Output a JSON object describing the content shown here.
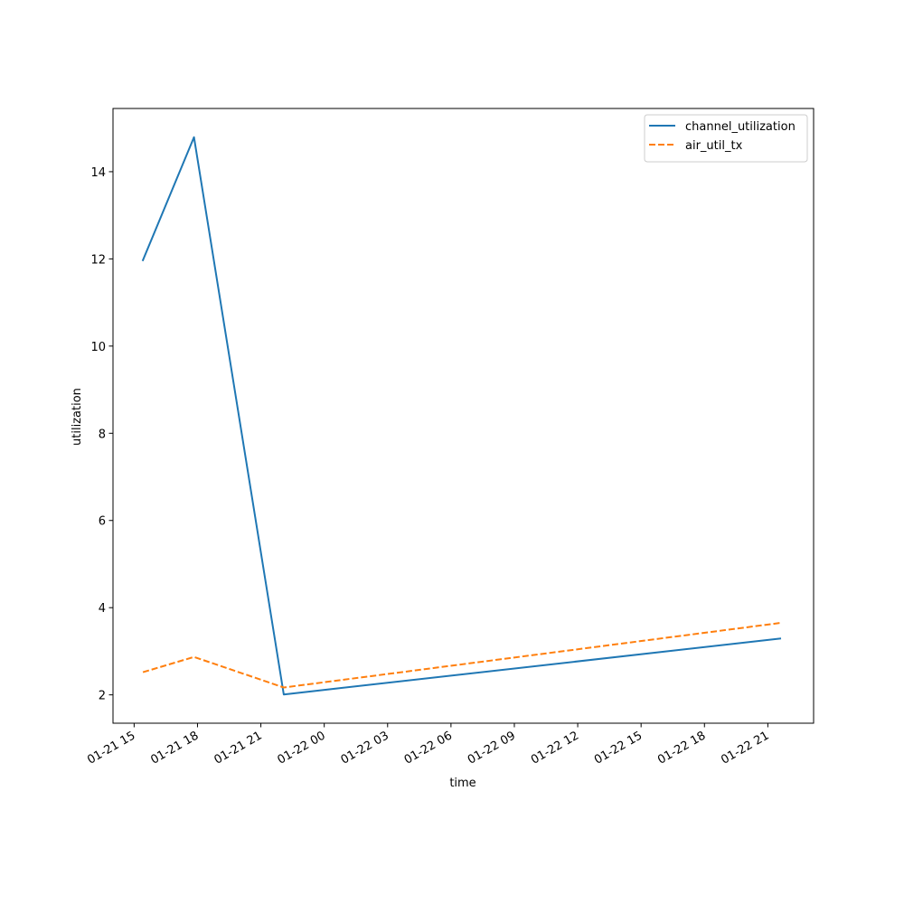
{
  "chart_data": {
    "type": "line",
    "title": "",
    "xlabel": "time",
    "ylabel": "utilization",
    "x_ticks": [
      "01-21 15",
      "01-21 18",
      "01-21 21",
      "01-22 00",
      "01-22 03",
      "01-22 06",
      "01-22 09",
      "01-22 12",
      "01-22 15",
      "01-22 18",
      "01-22 21"
    ],
    "y_ticks": [
      "2",
      "4",
      "6",
      "8",
      "10",
      "12",
      "14"
    ],
    "xlim": [
      "2024-01-21 14:00",
      "2024-01-22 23:10"
    ],
    "ylim": [
      1.35,
      15.45
    ],
    "x": [
      "2024-01-21 15:25",
      "2024-01-21 17:50",
      "2024-01-21 22:05",
      "2024-01-22 21:35"
    ],
    "series": [
      {
        "name": "channel_utilization",
        "values": [
          11.97,
          14.79,
          2.01,
          3.29
        ],
        "color": "#1f77b4",
        "style": "solid"
      },
      {
        "name": "air_util_tx",
        "values": [
          2.52,
          2.87,
          2.17,
          3.65
        ],
        "color": "#ff7f0e",
        "style": "dashed"
      }
    ],
    "legend": {
      "placement": "upper right"
    },
    "grid": false
  }
}
